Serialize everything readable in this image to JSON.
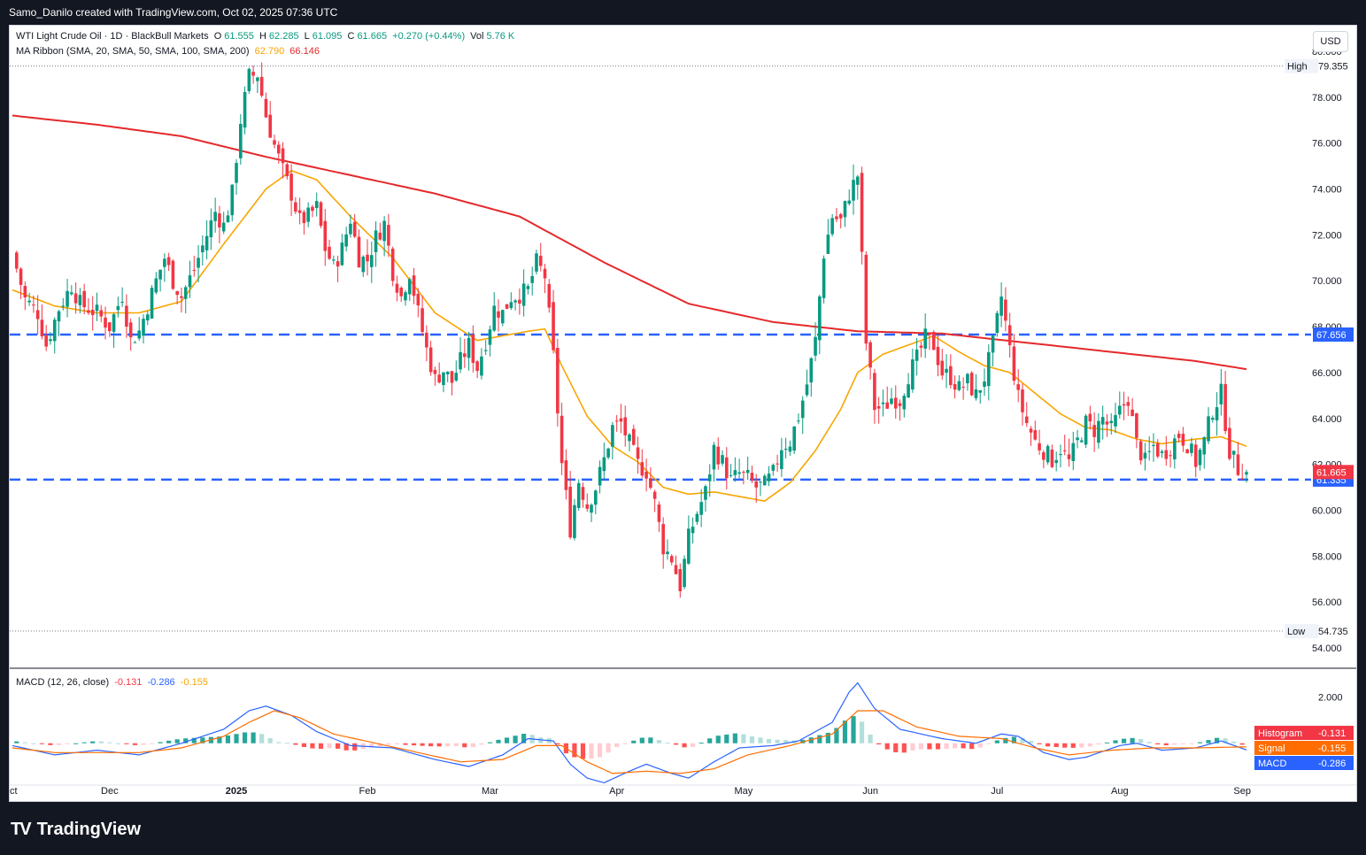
{
  "header": {
    "text": "Samo_Danilo created with TradingView.com, Oct 02, 2025 07:36 UTC"
  },
  "legend": {
    "symbol": "WTI Light Crude Oil · 1D · BlackBull Markets",
    "open_label": "O",
    "open": "61.555",
    "high_label": "H",
    "high": "62.285",
    "low_label": "L",
    "low": "61.095",
    "close_label": "C",
    "close": "61.665",
    "change": "+0.270 (+0.44%)",
    "vol_label": "Vol",
    "vol": "5.76 K",
    "ma_name": "MA Ribbon (SMA, 20, SMA, 50, SMA, 100, SMA, 200)",
    "ma20_value": "62.790",
    "ma200_value": "66.146",
    "macd_name": "MACD (12, 26, close)",
    "macd_hist_value": "-0.131",
    "macd_value": "-0.286",
    "macd_signal_value": "-0.155"
  },
  "currency_button": "USD",
  "brand": "TradingView",
  "chart_data": {
    "type": "candlestick",
    "ylim": [
      53,
      81
    ],
    "yticks": [
      "80.000",
      "78.000",
      "76.000",
      "74.000",
      "72.000",
      "70.000",
      "68.000",
      "66.000",
      "64.000",
      "62.000",
      "60.000",
      "58.000",
      "56.000",
      "54.000"
    ],
    "xticks": [
      "Dec",
      "2025",
      "Feb",
      "Mar",
      "Apr",
      "May",
      "Jun",
      "Jul",
      "Aug",
      "Sep",
      "Oct"
    ],
    "x_range": [
      "2024-11-06",
      "2025-10-02"
    ],
    "high_marker": {
      "label": "High",
      "value": 79.355,
      "text": "79.355"
    },
    "low_marker": {
      "label": "Low",
      "value": 54.735,
      "text": "54.735"
    },
    "horizontal_lines": [
      {
        "value": 67.656,
        "text": "67.656"
      },
      {
        "value": 61.335,
        "text": "61.335"
      }
    ],
    "last_price": {
      "value": 61.665,
      "text": "61.665"
    },
    "anchors": [
      [
        0,
        71.2
      ],
      [
        3,
        69.2
      ],
      [
        6,
        68.6
      ],
      [
        8,
        67.2
      ],
      [
        11,
        68.8
      ],
      [
        14,
        69.8
      ],
      [
        16,
        69.0
      ],
      [
        20,
        68.6
      ],
      [
        23,
        68.0
      ],
      [
        26,
        69.4
      ],
      [
        28,
        67.4
      ],
      [
        30,
        67.8
      ],
      [
        34,
        70.0
      ],
      [
        36,
        71.0
      ],
      [
        38,
        70.0
      ],
      [
        40,
        69.3
      ],
      [
        43,
        70.5
      ],
      [
        46,
        72.0
      ],
      [
        48,
        73.0
      ],
      [
        50,
        72.4
      ],
      [
        52,
        73.8
      ],
      [
        54,
        77.0
      ],
      [
        56,
        78.9
      ],
      [
        58,
        79.0
      ],
      [
        60,
        77.2
      ],
      [
        62,
        75.9
      ],
      [
        64,
        74.8
      ],
      [
        66,
        73.8
      ],
      [
        68,
        72.6
      ],
      [
        70,
        72.8
      ],
      [
        72,
        73.2
      ],
      [
        74,
        71.4
      ],
      [
        76,
        70.6
      ],
      [
        78,
        71.4
      ],
      [
        80,
        72.7
      ],
      [
        82,
        71.0
      ],
      [
        84,
        70.9
      ],
      [
        86,
        71.9
      ],
      [
        88,
        72.5
      ],
      [
        90,
        70.4
      ],
      [
        92,
        69.3
      ],
      [
        94,
        70.4
      ],
      [
        96,
        68.6
      ],
      [
        98,
        67.0
      ],
      [
        100,
        65.7
      ],
      [
        102,
        66.1
      ],
      [
        104,
        65.6
      ],
      [
        106,
        66.5
      ],
      [
        108,
        67.2
      ],
      [
        110,
        66.2
      ],
      [
        112,
        67.4
      ],
      [
        114,
        68.8
      ],
      [
        116,
        68.6
      ],
      [
        118,
        69.3
      ],
      [
        120,
        69.4
      ],
      [
        122,
        69.6
      ],
      [
        124,
        70.8
      ],
      [
        126,
        70.2
      ],
      [
        128,
        66.7
      ],
      [
        130,
        62.0
      ],
      [
        132,
        59.2
      ],
      [
        134,
        61.3
      ],
      [
        136,
        60.2
      ],
      [
        138,
        61.0
      ],
      [
        140,
        62.2
      ],
      [
        142,
        63.6
      ],
      [
        144,
        63.8
      ],
      [
        146,
        62.9
      ],
      [
        148,
        62.0
      ],
      [
        150,
        61.7
      ],
      [
        152,
        60.3
      ],
      [
        154,
        58.4
      ],
      [
        156,
        57.9
      ],
      [
        158,
        56.7
      ],
      [
        160,
        58.8
      ],
      [
        162,
        59.9
      ],
      [
        164,
        60.8
      ],
      [
        166,
        62.7
      ],
      [
        168,
        62.1
      ],
      [
        170,
        61.3
      ],
      [
        172,
        61.6
      ],
      [
        174,
        61.4
      ],
      [
        176,
        61.0
      ],
      [
        178,
        61.1
      ],
      [
        180,
        61.6
      ],
      [
        182,
        62.8
      ],
      [
        184,
        63.0
      ],
      [
        186,
        64.1
      ],
      [
        188,
        65.5
      ],
      [
        190,
        67.4
      ],
      [
        192,
        71.2
      ],
      [
        194,
        72.8
      ],
      [
        196,
        72.6
      ],
      [
        198,
        73.8
      ],
      [
        200,
        74.6
      ],
      [
        202,
        67.3
      ],
      [
        204,
        64.5
      ],
      [
        206,
        64.4
      ],
      [
        208,
        64.9
      ],
      [
        210,
        64.8
      ],
      [
        212,
        65.9
      ],
      [
        214,
        66.6
      ],
      [
        216,
        67.5
      ],
      [
        218,
        67.2
      ],
      [
        220,
        66.0
      ],
      [
        222,
        65.8
      ],
      [
        224,
        65.3
      ],
      [
        226,
        65.6
      ],
      [
        228,
        65.0
      ],
      [
        230,
        65.8
      ],
      [
        232,
        67.2
      ],
      [
        234,
        69.3
      ],
      [
        236,
        67.0
      ],
      [
        238,
        64.9
      ],
      [
        240,
        63.8
      ],
      [
        242,
        63.0
      ],
      [
        244,
        62.6
      ],
      [
        246,
        62.2
      ],
      [
        248,
        62.7
      ],
      [
        250,
        62.1
      ],
      [
        252,
        63.0
      ],
      [
        254,
        63.8
      ],
      [
        256,
        63.5
      ],
      [
        258,
        64.0
      ],
      [
        260,
        63.5
      ],
      [
        262,
        64.3
      ],
      [
        264,
        64.9
      ],
      [
        266,
        62.9
      ],
      [
        268,
        62.1
      ],
      [
        270,
        62.8
      ],
      [
        272,
        62.4
      ],
      [
        274,
        62.8
      ],
      [
        276,
        63.3
      ],
      [
        278,
        62.9
      ],
      [
        280,
        62.1
      ],
      [
        282,
        63.0
      ],
      [
        284,
        64.4
      ],
      [
        286,
        65.1
      ],
      [
        288,
        62.6
      ],
      [
        290,
        61.8
      ],
      [
        292,
        61.665
      ]
    ],
    "ma_series": [
      {
        "name": "SMA 20",
        "value_text": "62.790",
        "color": "#f7a600",
        "points": [
          [
            0,
            69.6
          ],
          [
            10,
            68.9
          ],
          [
            20,
            68.6
          ],
          [
            30,
            68.6
          ],
          [
            40,
            69.1
          ],
          [
            50,
            71.6
          ],
          [
            60,
            74.0
          ],
          [
            66,
            74.8
          ],
          [
            72,
            74.4
          ],
          [
            80,
            72.8
          ],
          [
            90,
            71.0
          ],
          [
            100,
            68.6
          ],
          [
            110,
            67.4
          ],
          [
            116,
            67.6
          ],
          [
            122,
            67.8
          ],
          [
            126,
            67.9
          ],
          [
            130,
            66.3
          ],
          [
            136,
            64.1
          ],
          [
            142,
            62.8
          ],
          [
            148,
            62.1
          ],
          [
            154,
            61.0
          ],
          [
            160,
            60.7
          ],
          [
            166,
            60.8
          ],
          [
            172,
            60.6
          ],
          [
            178,
            60.4
          ],
          [
            184,
            61.2
          ],
          [
            190,
            62.6
          ],
          [
            196,
            64.4
          ],
          [
            200,
            66.0
          ],
          [
            206,
            66.8
          ],
          [
            212,
            67.2
          ],
          [
            218,
            67.6
          ],
          [
            224,
            66.9
          ],
          [
            230,
            66.3
          ],
          [
            236,
            66.0
          ],
          [
            242,
            65.1
          ],
          [
            248,
            64.2
          ],
          [
            254,
            63.6
          ],
          [
            260,
            63.5
          ],
          [
            266,
            63.1
          ],
          [
            272,
            62.9
          ],
          [
            280,
            63.1
          ],
          [
            286,
            63.2
          ],
          [
            292,
            62.79
          ]
        ]
      },
      {
        "name": "SMA 200",
        "value_text": "66.146",
        "color": "#e5292b",
        "points": [
          [
            0,
            77.2
          ],
          [
            20,
            76.8
          ],
          [
            40,
            76.3
          ],
          [
            60,
            75.4
          ],
          [
            80,
            74.6
          ],
          [
            100,
            73.8
          ],
          [
            120,
            72.8
          ],
          [
            140,
            70.8
          ],
          [
            160,
            69.0
          ],
          [
            180,
            68.2
          ],
          [
            200,
            67.8
          ],
          [
            220,
            67.7
          ],
          [
            240,
            67.3
          ],
          [
            260,
            66.9
          ],
          [
            280,
            66.5
          ],
          [
            292,
            66.146
          ]
        ]
      }
    ],
    "macd": {
      "name": "MACD (12, 26, close)",
      "ylim": [
        -1.8,
        3.0
      ],
      "ytick": "2.000",
      "histogram": {
        "label": "Histogram",
        "value": -0.131,
        "text": "-0.131",
        "color": "#ff5252"
      },
      "signal": {
        "label": "Signal",
        "value": -0.155,
        "text": "-0.155",
        "color": "#ff6d00"
      },
      "macd_line": {
        "label": "MACD",
        "value": -0.286,
        "text": "-0.286",
        "color": "#2962ff"
      },
      "macd_anchors": [
        [
          0,
          -0.1
        ],
        [
          10,
          -0.5
        ],
        [
          20,
          -0.3
        ],
        [
          30,
          -0.5
        ],
        [
          40,
          0.0
        ],
        [
          50,
          0.6
        ],
        [
          56,
          1.4
        ],
        [
          60,
          1.6
        ],
        [
          66,
          1.2
        ],
        [
          72,
          0.5
        ],
        [
          80,
          -0.1
        ],
        [
          90,
          -0.2
        ],
        [
          100,
          -0.7
        ],
        [
          108,
          -1.0
        ],
        [
          116,
          -0.5
        ],
        [
          122,
          0.2
        ],
        [
          128,
          0.1
        ],
        [
          132,
          -0.9
        ],
        [
          136,
          -1.5
        ],
        [
          140,
          -1.7
        ],
        [
          146,
          -1.2
        ],
        [
          150,
          -0.9
        ],
        [
          156,
          -1.3
        ],
        [
          160,
          -1.5
        ],
        [
          166,
          -0.8
        ],
        [
          172,
          -0.2
        ],
        [
          180,
          -0.1
        ],
        [
          186,
          0.1
        ],
        [
          194,
          0.9
        ],
        [
          198,
          2.2
        ],
        [
          200,
          2.6
        ],
        [
          204,
          1.5
        ],
        [
          210,
          0.6
        ],
        [
          220,
          0.2
        ],
        [
          228,
          0.0
        ],
        [
          234,
          0.4
        ],
        [
          238,
          0.3
        ],
        [
          244,
          -0.4
        ],
        [
          250,
          -0.7
        ],
        [
          254,
          -0.6
        ],
        [
          262,
          -0.1
        ],
        [
          266,
          0.0
        ],
        [
          272,
          -0.3
        ],
        [
          280,
          -0.2
        ],
        [
          286,
          0.1
        ],
        [
          292,
          -0.286
        ]
      ],
      "signal_anchors": [
        [
          0,
          -0.2
        ],
        [
          10,
          -0.4
        ],
        [
          20,
          -0.4
        ],
        [
          30,
          -0.4
        ],
        [
          40,
          -0.2
        ],
        [
          50,
          0.3
        ],
        [
          56,
          0.9
        ],
        [
          62,
          1.4
        ],
        [
          68,
          1.1
        ],
        [
          76,
          0.4
        ],
        [
          86,
          0.0
        ],
        [
          96,
          -0.4
        ],
        [
          106,
          -0.8
        ],
        [
          116,
          -0.7
        ],
        [
          124,
          -0.1
        ],
        [
          130,
          -0.1
        ],
        [
          136,
          -0.8
        ],
        [
          142,
          -1.3
        ],
        [
          150,
          -1.2
        ],
        [
          158,
          -1.3
        ],
        [
          166,
          -1.1
        ],
        [
          174,
          -0.5
        ],
        [
          184,
          -0.1
        ],
        [
          194,
          0.4
        ],
        [
          200,
          1.4
        ],
        [
          206,
          1.4
        ],
        [
          214,
          0.7
        ],
        [
          224,
          0.3
        ],
        [
          234,
          0.2
        ],
        [
          242,
          -0.2
        ],
        [
          250,
          -0.5
        ],
        [
          260,
          -0.3
        ],
        [
          270,
          -0.2
        ],
        [
          280,
          -0.2
        ],
        [
          292,
          -0.155
        ]
      ]
    }
  }
}
